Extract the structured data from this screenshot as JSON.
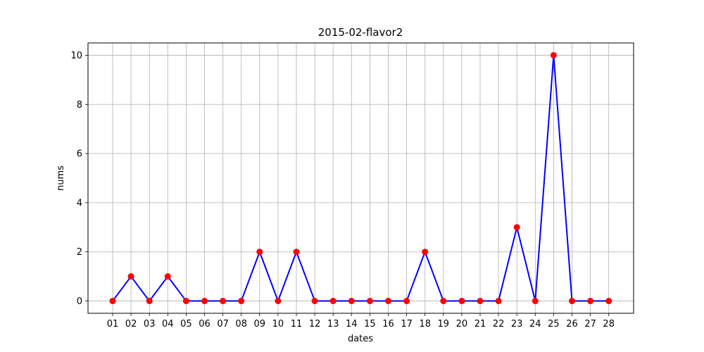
{
  "chart_data": {
    "type": "line",
    "title": "2015-02-flavor2",
    "xlabel": "dates",
    "ylabel": "nums",
    "categories": [
      "01",
      "02",
      "03",
      "04",
      "05",
      "06",
      "07",
      "08",
      "09",
      "10",
      "11",
      "12",
      "13",
      "14",
      "15",
      "16",
      "17",
      "18",
      "19",
      "20",
      "21",
      "22",
      "23",
      "24",
      "25",
      "26",
      "27",
      "28"
    ],
    "series": [
      {
        "values": [
          0,
          1,
          0,
          1,
          0,
          0,
          0,
          0,
          2,
          0,
          2,
          0,
          0,
          0,
          0,
          0,
          0,
          2,
          0,
          0,
          0,
          0,
          3,
          0,
          10,
          0,
          0,
          0
        ],
        "line_color": "#0000ff",
        "marker_color": "#ff0000"
      }
    ],
    "ylim": [
      -0.5,
      10.5
    ],
    "yticks": [
      0,
      2,
      4,
      6,
      8,
      10
    ],
    "grid": true
  }
}
